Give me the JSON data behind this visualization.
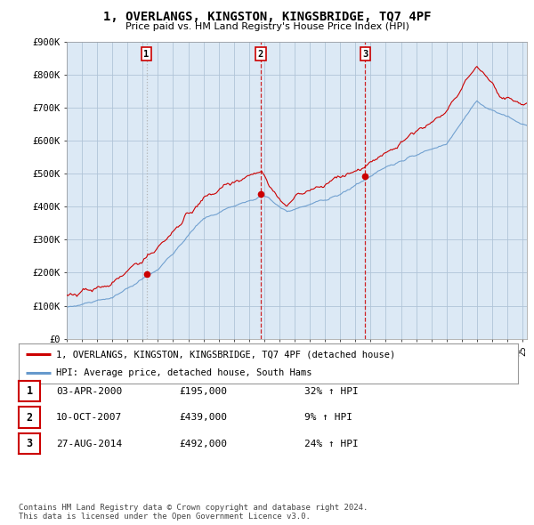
{
  "title": "1, OVERLANGS, KINGSTON, KINGSBRIDGE, TQ7 4PF",
  "subtitle": "Price paid vs. HM Land Registry's House Price Index (HPI)",
  "ylim": [
    0,
    900000
  ],
  "yticks": [
    0,
    100000,
    200000,
    300000,
    400000,
    500000,
    600000,
    700000,
    800000,
    900000
  ],
  "ytick_labels": [
    "£0",
    "£100K",
    "£200K",
    "£300K",
    "£400K",
    "£500K",
    "£600K",
    "£700K",
    "£800K",
    "£900K"
  ],
  "chart_bg_color": "#dce9f5",
  "fig_bg_color": "#ffffff",
  "grid_color": "#b0c4d8",
  "hpi_color": "#6699cc",
  "price_color": "#cc0000",
  "vline1_color": "#aaaaaa",
  "vline2_color": "#cc0000",
  "vline3_color": "#cc0000",
  "legend_label_price": "1, OVERLANGS, KINGSTON, KINGSBRIDGE, TQ7 4PF (detached house)",
  "legend_label_hpi": "HPI: Average price, detached house, South Hams",
  "transactions": [
    {
      "year": 2000.25,
      "price": 195000,
      "label": "1",
      "vline_style": "dotted",
      "vline_color": "#aaaaaa"
    },
    {
      "year": 2007.77,
      "price": 439000,
      "label": "2",
      "vline_style": "dashed",
      "vline_color": "#cc0000"
    },
    {
      "year": 2014.65,
      "price": 492000,
      "label": "3",
      "vline_style": "dashed",
      "vline_color": "#cc0000"
    }
  ],
  "table_rows": [
    {
      "num": "1",
      "date": "03-APR-2000",
      "price": "£195,000",
      "hpi": "32% ↑ HPI"
    },
    {
      "num": "2",
      "date": "10-OCT-2007",
      "price": "£439,000",
      "hpi": "9% ↑ HPI"
    },
    {
      "num": "3",
      "date": "27-AUG-2014",
      "price": "£492,000",
      "hpi": "24% ↑ HPI"
    }
  ],
  "footer": "Contains HM Land Registry data © Crown copyright and database right 2024.\nThis data is licensed under the Open Government Licence v3.0."
}
